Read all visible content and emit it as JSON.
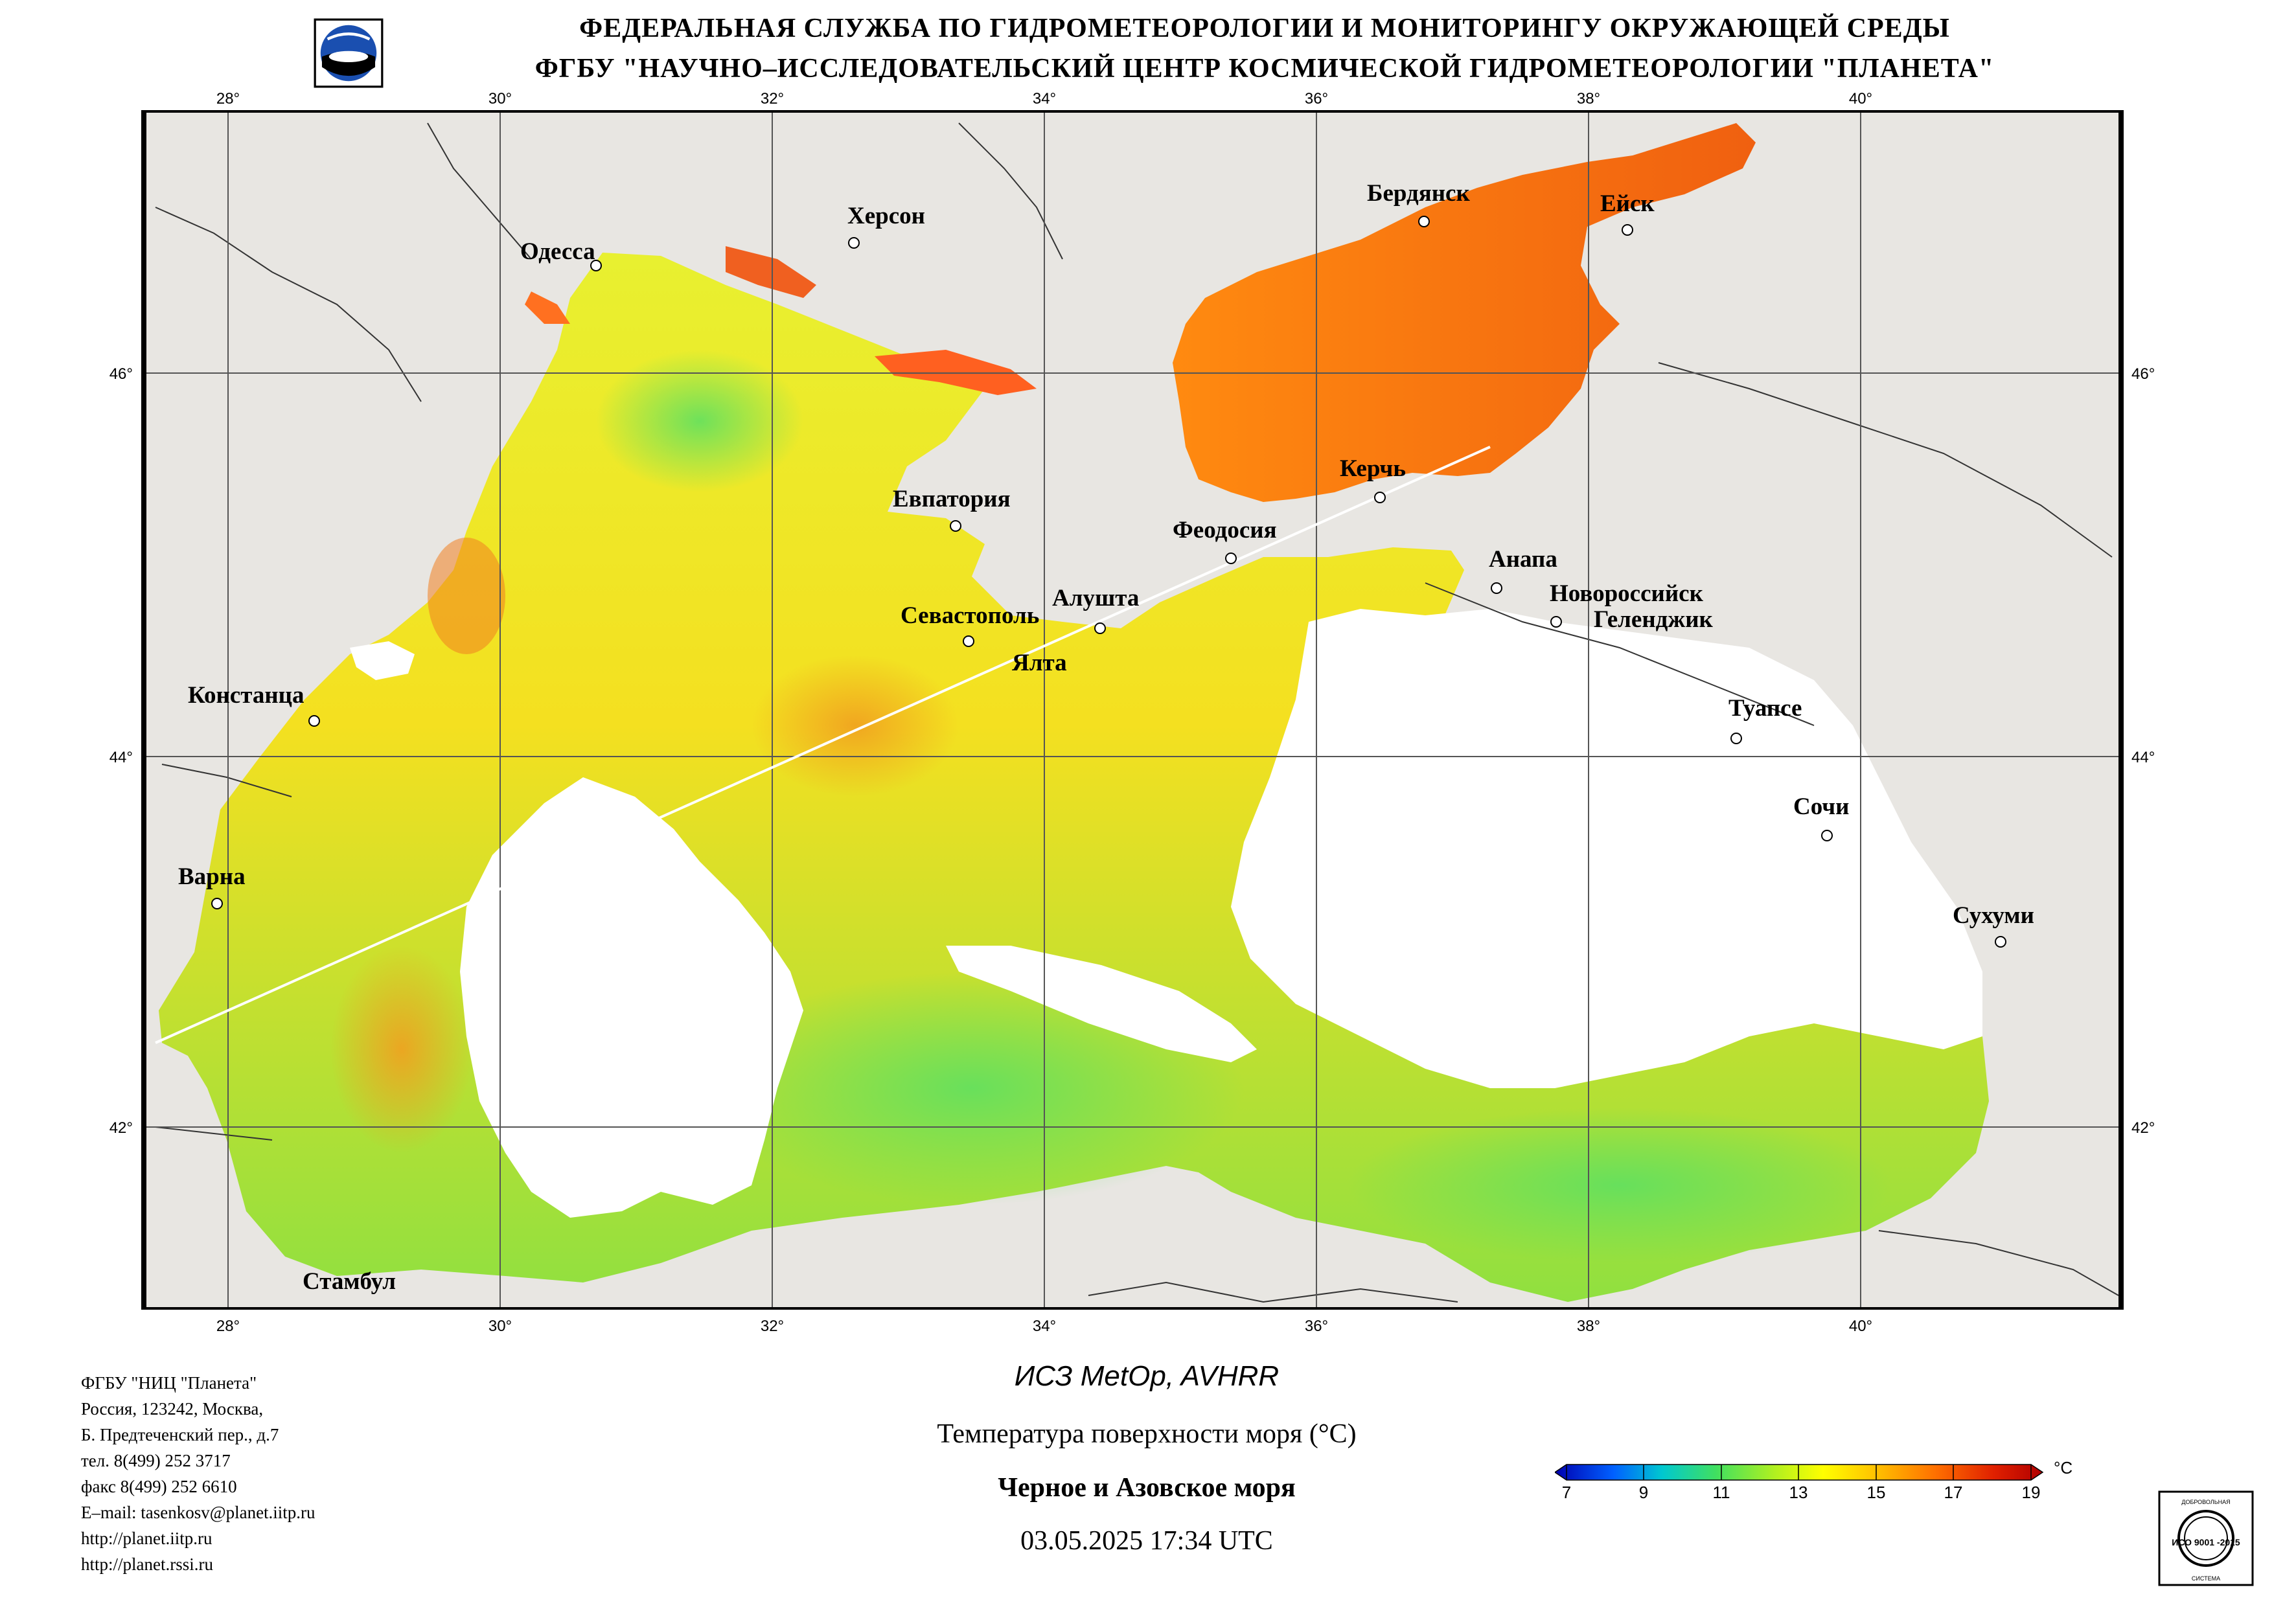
{
  "header": {
    "line1": "ФЕДЕРАЛЬНАЯ СЛУЖБА ПО ГИДРОМЕТЕОРОЛОГИИ И МОНИТОРИНГУ ОКРУЖАЮЩЕЙ СРЕДЫ",
    "line2": "ФГБУ \"НАУЧНО–ИССЛЕДОВАТЕЛЬСКИЙ ЦЕНТР КОСМИЧЕСКОЙ ГИДРОМЕТЕОРОЛОГИИ \"ПЛАНЕТА\""
  },
  "map": {
    "lon_ticks": [
      "28°",
      "30°",
      "32°",
      "34°",
      "36°",
      "38°",
      "40°"
    ],
    "lat_ticks": [
      "46°",
      "44°",
      "42°"
    ],
    "cities": {
      "odessa": "Одесса",
      "kherson": "Херсон",
      "berdyansk": "Бердянск",
      "yeysk": "Ейск",
      "kerch": "Керчь",
      "evpatoria": "Евпатория",
      "feodosia": "Феодосия",
      "anapa": "Анапа",
      "novorossiysk": "Новороссийск",
      "gelendzhik": "Геленджик",
      "sevastopol": "Севастополь",
      "alushta": "Алушта",
      "yalta": "Ялта",
      "constanta": "Констанца",
      "tuapse": "Туапсе",
      "sochi": "Сочи",
      "varna": "Варна",
      "sukhumi": "Сухуми",
      "istanbul": "Стамбул"
    }
  },
  "contact": {
    "org": "ФГБУ \"НИЦ \"Планета\"",
    "address1": "Россия, 123242, Москва,",
    "address2": "Б. Предтеченский пер., д.7",
    "tel": "тел. 8(499) 252 3717",
    "fax": "факс 8(499) 252 6610",
    "email": "E–mail: tasenkosv@planet.iitp.ru",
    "url1": "http://planet.iitp.ru",
    "url2": "http://planet.rssi.ru"
  },
  "caption": {
    "satellite": "ИСЗ MetOp, AVHRR",
    "parameter": "Температура поверхности моря (°C)",
    "region": "Черное и Азовское моря",
    "datetime": "03.05.2025 17:34 UTC"
  },
  "colorbar": {
    "unit": "°C",
    "labels": [
      "7",
      "9",
      "11",
      "13",
      "15",
      "17",
      "19"
    ],
    "colors": [
      "#0000b0",
      "#0080ff",
      "#00d8a0",
      "#50e050",
      "#c8f020",
      "#ffff00",
      "#ffc000",
      "#ff7000",
      "#e02000",
      "#b00000"
    ]
  },
  "iso": {
    "top": "ДОБРОВОЛЬНАЯ",
    "mid": "ИСО 9001 -2015",
    "bottom": "СИСТЕМА"
  }
}
